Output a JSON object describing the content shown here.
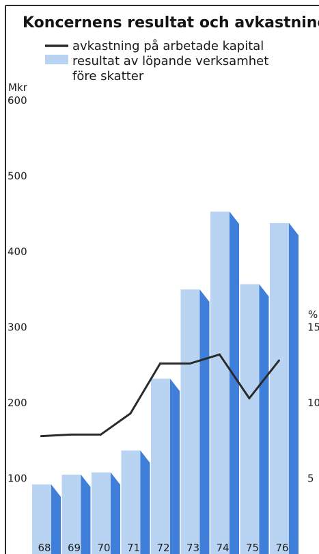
{
  "chart_data": {
    "type": "bar",
    "title": "Koncernens resultat och avkastning",
    "categories": [
      "68",
      "69",
      "70",
      "71",
      "72",
      "73",
      "74",
      "75",
      "76"
    ],
    "series": [
      {
        "name": "resultat av löpande verksamhet före skatter",
        "type": "bar",
        "axis": "left",
        "values": [
          92,
          105,
          108,
          137,
          232,
          350,
          453,
          357,
          438
        ]
      },
      {
        "name": "avkastning på arbetade kapital",
        "type": "line",
        "axis": "right",
        "values": [
          7.8,
          7.9,
          7.9,
          9.3,
          12.6,
          12.6,
          13.2,
          10.3,
          12.8
        ]
      }
    ],
    "legend": {
      "line_label": "avkastning på arbetade kapital",
      "bar_label_line1": "resultat av löpande verksamhet",
      "bar_label_line2": "före skatter"
    },
    "y_left": {
      "unit": "Mkr",
      "ticks": [
        "600",
        "500",
        "400",
        "300",
        "200",
        "100"
      ],
      "range": [
        0,
        600
      ]
    },
    "y_right": {
      "unit": "%",
      "tick_labels": [
        "15",
        "10",
        "5"
      ],
      "range": [
        0,
        30
      ]
    },
    "grid": false,
    "legend_position": "top-left",
    "colors": {
      "bar_front": "#b9d4f3",
      "bar_side": "#3f7fda",
      "line": "#2a2a2a",
      "frame": "#2a2a2a"
    }
  }
}
